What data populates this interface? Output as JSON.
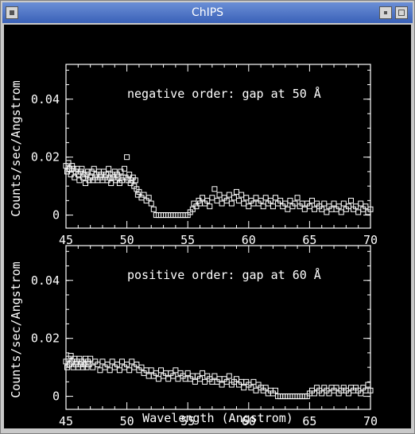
{
  "window": {
    "title": "ChIPS",
    "icons": {
      "menu": "window-menu-icon",
      "minimize": "minimize-icon",
      "maximize": "maximize-icon"
    }
  },
  "colors": {
    "background": "#000000",
    "foreground": "#ffffff",
    "titlebar": "#4a72c6"
  },
  "chart_data": [
    {
      "type": "scatter",
      "annotation": "negative order: gap at 50 Å",
      "xlabel": "",
      "ylabel": "Counts/sec/Angstrom",
      "xlim": [
        45,
        70
      ],
      "ylim": [
        -0.0045,
        0.052
      ],
      "xticks": [
        45,
        50,
        55,
        60,
        65,
        70
      ],
      "yticks": [
        0,
        0.02,
        0.04
      ],
      "ytick_labels": [
        "0",
        "0.02",
        "0.04"
      ],
      "marker": "open-square",
      "points": [
        [
          45.0,
          0.017
        ],
        [
          45.1,
          0.015
        ],
        [
          45.2,
          0.018
        ],
        [
          45.3,
          0.016
        ],
        [
          45.4,
          0.014
        ],
        [
          45.5,
          0.017
        ],
        [
          45.6,
          0.016
        ],
        [
          45.7,
          0.013
        ],
        [
          45.8,
          0.015
        ],
        [
          45.9,
          0.016
        ],
        [
          46.0,
          0.014
        ],
        [
          46.1,
          0.012
        ],
        [
          46.2,
          0.015
        ],
        [
          46.3,
          0.016
        ],
        [
          46.4,
          0.013
        ],
        [
          46.5,
          0.014
        ],
        [
          46.6,
          0.011
        ],
        [
          46.7,
          0.014
        ],
        [
          46.8,
          0.015
        ],
        [
          46.9,
          0.012
        ],
        [
          47.0,
          0.013
        ],
        [
          47.1,
          0.015
        ],
        [
          47.2,
          0.012
        ],
        [
          47.3,
          0.016
        ],
        [
          47.4,
          0.013
        ],
        [
          47.5,
          0.014
        ],
        [
          47.6,
          0.012
        ],
        [
          47.7,
          0.015
        ],
        [
          47.8,
          0.013
        ],
        [
          47.9,
          0.014
        ],
        [
          48.0,
          0.012
        ],
        [
          48.1,
          0.015
        ],
        [
          48.2,
          0.013
        ],
        [
          48.3,
          0.014
        ],
        [
          48.4,
          0.012
        ],
        [
          48.5,
          0.016
        ],
        [
          48.6,
          0.013
        ],
        [
          48.7,
          0.011
        ],
        [
          48.8,
          0.014
        ],
        [
          48.9,
          0.013
        ],
        [
          49.0,
          0.015
        ],
        [
          49.1,
          0.012
        ],
        [
          49.2,
          0.014
        ],
        [
          49.3,
          0.013
        ],
        [
          49.4,
          0.011
        ],
        [
          49.5,
          0.015
        ],
        [
          49.6,
          0.012
        ],
        [
          49.7,
          0.013
        ],
        [
          49.8,
          0.016
        ],
        [
          49.9,
          0.013
        ],
        [
          50.0,
          0.02
        ],
        [
          50.1,
          0.012
        ],
        [
          50.2,
          0.014
        ],
        [
          50.3,
          0.011
        ],
        [
          50.4,
          0.012
        ],
        [
          50.5,
          0.013
        ],
        [
          50.6,
          0.01
        ],
        [
          50.7,
          0.012
        ],
        [
          50.8,
          0.009
        ],
        [
          50.9,
          0.007
        ],
        [
          51.0,
          0.008
        ],
        [
          51.2,
          0.006
        ],
        [
          51.4,
          0.007
        ],
        [
          51.6,
          0.005
        ],
        [
          51.8,
          0.006
        ],
        [
          52.0,
          0.004
        ],
        [
          52.2,
          0.002
        ],
        [
          52.4,
          0.0
        ],
        [
          52.6,
          0.0
        ],
        [
          52.8,
          0.0
        ],
        [
          53.0,
          0.0
        ],
        [
          53.2,
          0.0
        ],
        [
          53.4,
          0.0
        ],
        [
          53.6,
          0.0
        ],
        [
          53.8,
          0.0
        ],
        [
          54.0,
          0.0
        ],
        [
          54.2,
          0.0
        ],
        [
          54.4,
          0.0
        ],
        [
          54.6,
          0.0
        ],
        [
          54.8,
          0.0
        ],
        [
          55.0,
          0.0
        ],
        [
          55.2,
          0.001
        ],
        [
          55.4,
          0.002
        ],
        [
          55.5,
          0.004
        ],
        [
          55.7,
          0.003
        ],
        [
          55.9,
          0.005
        ],
        [
          56.0,
          0.004
        ],
        [
          56.2,
          0.006
        ],
        [
          56.4,
          0.004
        ],
        [
          56.6,
          0.005
        ],
        [
          56.8,
          0.003
        ],
        [
          57.0,
          0.006
        ],
        [
          57.2,
          0.009
        ],
        [
          57.4,
          0.005
        ],
        [
          57.6,
          0.007
        ],
        [
          57.8,
          0.004
        ],
        [
          58.0,
          0.006
        ],
        [
          58.2,
          0.005
        ],
        [
          58.4,
          0.007
        ],
        [
          58.6,
          0.004
        ],
        [
          58.8,
          0.006
        ],
        [
          59.0,
          0.008
        ],
        [
          59.2,
          0.005
        ],
        [
          59.4,
          0.007
        ],
        [
          59.6,
          0.004
        ],
        [
          59.8,
          0.006
        ],
        [
          60.0,
          0.003
        ],
        [
          60.2,
          0.005
        ],
        [
          60.4,
          0.004
        ],
        [
          60.6,
          0.006
        ],
        [
          60.8,
          0.004
        ],
        [
          61.0,
          0.005
        ],
        [
          61.2,
          0.003
        ],
        [
          61.4,
          0.006
        ],
        [
          61.6,
          0.004
        ],
        [
          61.8,
          0.005
        ],
        [
          62.0,
          0.003
        ],
        [
          62.2,
          0.006
        ],
        [
          62.4,
          0.004
        ],
        [
          62.6,
          0.005
        ],
        [
          62.8,
          0.003
        ],
        [
          63.0,
          0.004
        ],
        [
          63.2,
          0.002
        ],
        [
          63.4,
          0.005
        ],
        [
          63.6,
          0.003
        ],
        [
          63.8,
          0.004
        ],
        [
          64.0,
          0.006
        ],
        [
          64.2,
          0.003
        ],
        [
          64.4,
          0.004
        ],
        [
          64.6,
          0.002
        ],
        [
          64.8,
          0.004
        ],
        [
          65.0,
          0.003
        ],
        [
          65.2,
          0.005
        ],
        [
          65.4,
          0.002
        ],
        [
          65.6,
          0.004
        ],
        [
          65.8,
          0.003
        ],
        [
          66.0,
          0.002
        ],
        [
          66.2,
          0.004
        ],
        [
          66.4,
          0.001
        ],
        [
          66.6,
          0.003
        ],
        [
          66.8,
          0.002
        ],
        [
          67.0,
          0.004
        ],
        [
          67.2,
          0.002
        ],
        [
          67.4,
          0.003
        ],
        [
          67.6,
          0.001
        ],
        [
          67.8,
          0.004
        ],
        [
          68.0,
          0.002
        ],
        [
          68.2,
          0.003
        ],
        [
          68.4,
          0.005
        ],
        [
          68.6,
          0.002
        ],
        [
          68.8,
          0.003
        ],
        [
          69.0,
          0.001
        ],
        [
          69.2,
          0.004
        ],
        [
          69.4,
          0.002
        ],
        [
          69.6,
          0.003
        ],
        [
          69.8,
          0.001
        ],
        [
          70.0,
          0.002
        ]
      ]
    },
    {
      "type": "scatter",
      "annotation": "positive order: gap at 60 Å",
      "xlabel": "Wavelength (Angstrom)",
      "ylabel": "Counts/sec/Angstrom",
      "xlim": [
        45,
        70
      ],
      "ylim": [
        -0.0045,
        0.052
      ],
      "xticks": [
        45,
        50,
        55,
        60,
        65,
        70
      ],
      "yticks": [
        0,
        0.02,
        0.04
      ],
      "ytick_labels": [
        "0",
        "0.02",
        "0.04"
      ],
      "marker": "open-square",
      "points": [
        [
          45.0,
          0.012
        ],
        [
          45.1,
          0.01
        ],
        [
          45.2,
          0.013
        ],
        [
          45.3,
          0.011
        ],
        [
          45.4,
          0.014
        ],
        [
          45.5,
          0.012
        ],
        [
          45.6,
          0.01
        ],
        [
          45.7,
          0.013
        ],
        [
          45.8,
          0.011
        ],
        [
          45.9,
          0.012
        ],
        [
          46.0,
          0.01
        ],
        [
          46.1,
          0.013
        ],
        [
          46.2,
          0.011
        ],
        [
          46.3,
          0.012
        ],
        [
          46.4,
          0.01
        ],
        [
          46.5,
          0.011
        ],
        [
          46.6,
          0.013
        ],
        [
          46.7,
          0.01
        ],
        [
          46.8,
          0.012
        ],
        [
          46.9,
          0.011
        ],
        [
          47.0,
          0.013
        ],
        [
          47.2,
          0.01
        ],
        [
          47.4,
          0.012
        ],
        [
          47.6,
          0.011
        ],
        [
          47.8,
          0.009
        ],
        [
          48.0,
          0.012
        ],
        [
          48.2,
          0.01
        ],
        [
          48.4,
          0.011
        ],
        [
          48.6,
          0.009
        ],
        [
          48.8,
          0.012
        ],
        [
          49.0,
          0.01
        ],
        [
          49.2,
          0.011
        ],
        [
          49.4,
          0.009
        ],
        [
          49.6,
          0.012
        ],
        [
          49.8,
          0.01
        ],
        [
          50.0,
          0.011
        ],
        [
          50.2,
          0.009
        ],
        [
          50.4,
          0.012
        ],
        [
          50.6,
          0.01
        ],
        [
          50.8,
          0.011
        ],
        [
          51.0,
          0.009
        ],
        [
          51.2,
          0.01
        ],
        [
          51.4,
          0.008
        ],
        [
          51.6,
          0.009
        ],
        [
          51.8,
          0.007
        ],
        [
          52.0,
          0.009
        ],
        [
          52.2,
          0.007
        ],
        [
          52.4,
          0.008
        ],
        [
          52.6,
          0.006
        ],
        [
          52.8,
          0.009
        ],
        [
          53.0,
          0.007
        ],
        [
          53.2,
          0.008
        ],
        [
          53.4,
          0.006
        ],
        [
          53.6,
          0.008
        ],
        [
          53.8,
          0.007
        ],
        [
          54.0,
          0.009
        ],
        [
          54.2,
          0.006
        ],
        [
          54.4,
          0.008
        ],
        [
          54.6,
          0.007
        ],
        [
          54.8,
          0.006
        ],
        [
          55.0,
          0.008
        ],
        [
          55.2,
          0.006
        ],
        [
          55.4,
          0.007
        ],
        [
          55.6,
          0.005
        ],
        [
          55.8,
          0.007
        ],
        [
          56.0,
          0.006
        ],
        [
          56.2,
          0.008
        ],
        [
          56.4,
          0.005
        ],
        [
          56.6,
          0.007
        ],
        [
          56.8,
          0.006
        ],
        [
          57.0,
          0.005
        ],
        [
          57.2,
          0.007
        ],
        [
          57.4,
          0.005
        ],
        [
          57.6,
          0.006
        ],
        [
          57.8,
          0.004
        ],
        [
          58.0,
          0.006
        ],
        [
          58.2,
          0.005
        ],
        [
          58.4,
          0.007
        ],
        [
          58.6,
          0.004
        ],
        [
          58.8,
          0.005
        ],
        [
          59.0,
          0.006
        ],
        [
          59.2,
          0.004
        ],
        [
          59.4,
          0.005
        ],
        [
          59.6,
          0.003
        ],
        [
          59.8,
          0.005
        ],
        [
          60.0,
          0.004
        ],
        [
          60.2,
          0.003
        ],
        [
          60.4,
          0.005
        ],
        [
          60.6,
          0.002
        ],
        [
          60.8,
          0.004
        ],
        [
          61.0,
          0.003
        ],
        [
          61.2,
          0.002
        ],
        [
          61.4,
          0.003
        ],
        [
          61.6,
          0.001
        ],
        [
          61.8,
          0.002
        ],
        [
          62.0,
          0.001
        ],
        [
          62.2,
          0.002
        ],
        [
          62.4,
          0.0
        ],
        [
          62.6,
          0.0
        ],
        [
          62.8,
          0.0
        ],
        [
          63.0,
          0.0
        ],
        [
          63.2,
          0.0
        ],
        [
          63.4,
          0.0
        ],
        [
          63.6,
          0.0
        ],
        [
          63.8,
          0.0
        ],
        [
          64.0,
          0.0
        ],
        [
          64.2,
          0.0
        ],
        [
          64.4,
          0.0
        ],
        [
          64.6,
          0.0
        ],
        [
          64.8,
          0.0
        ],
        [
          65.0,
          0.001
        ],
        [
          65.2,
          0.002
        ],
        [
          65.4,
          0.001
        ],
        [
          65.6,
          0.003
        ],
        [
          65.8,
          0.002
        ],
        [
          66.0,
          0.001
        ],
        [
          66.2,
          0.003
        ],
        [
          66.4,
          0.002
        ],
        [
          66.6,
          0.001
        ],
        [
          66.8,
          0.003
        ],
        [
          67.0,
          0.002
        ],
        [
          67.2,
          0.003
        ],
        [
          67.4,
          0.001
        ],
        [
          67.6,
          0.002
        ],
        [
          67.8,
          0.003
        ],
        [
          68.0,
          0.002
        ],
        [
          68.2,
          0.001
        ],
        [
          68.4,
          0.003
        ],
        [
          68.6,
          0.002
        ],
        [
          68.8,
          0.003
        ],
        [
          69.0,
          0.002
        ],
        [
          69.2,
          0.001
        ],
        [
          69.4,
          0.003
        ],
        [
          69.6,
          0.002
        ],
        [
          69.8,
          0.004
        ],
        [
          70.0,
          0.002
        ]
      ]
    }
  ]
}
